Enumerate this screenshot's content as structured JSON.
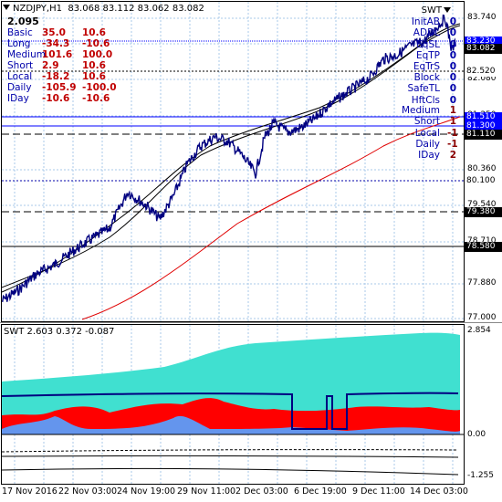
{
  "symbol_title": "NZDJPY,H1",
  "ohlc": "83.068 83.112 83.062 83.082",
  "main_value": "2.095",
  "stats": [
    {
      "label": "Basic",
      "v1": "35.0",
      "v2": "10.6"
    },
    {
      "label": "Long",
      "v1": "-34.3",
      "v2": "-10.6"
    },
    {
      "label": "Medium",
      "v1": "101.6",
      "v2": "100.0"
    },
    {
      "label": "Short",
      "v1": "2.9",
      "v2": "10.6"
    },
    {
      "label": "Local",
      "v1": "-18.2",
      "v2": "10.6"
    },
    {
      "label": "Daily",
      "v1": "-105.9",
      "v2": "-100.0"
    },
    {
      "label": "IDay",
      "v1": "-10.6",
      "v2": "-10.6"
    }
  ],
  "swt_label": "SWT",
  "right_group1": [
    {
      "label": "InitAB",
      "value": "0"
    },
    {
      "label": "ADDL",
      "value": "0"
    },
    {
      "label": "EqSL",
      "value": "0"
    },
    {
      "label": "EqTP",
      "value": "0"
    },
    {
      "label": "EqTrS",
      "value": "0"
    }
  ],
  "right_group2": [
    {
      "label": "Block",
      "value": "0"
    },
    {
      "label": "SafeTL",
      "value": "0"
    },
    {
      "label": "HftCls",
      "value": "0"
    }
  ],
  "right_group3": [
    {
      "label": "Medium",
      "value": "1"
    },
    {
      "label": "Short",
      "value": "1"
    },
    {
      "label": "Local",
      "value": "-1"
    },
    {
      "label": "Daily",
      "value": "-1"
    },
    {
      "label": "IDay",
      "value": "2"
    }
  ],
  "price_axis": [
    "83.740",
    "82.910",
    "82.080",
    "81.250",
    "80.360",
    "79.540",
    "78.710",
    "77.880",
    "77.000"
  ],
  "price_tags": [
    {
      "text": "83.230",
      "bg": "#0000ff",
      "fg": "#ffffff"
    },
    {
      "text": "83.082",
      "bg": "#000000",
      "fg": "#ffffff"
    },
    {
      "text": "82.520",
      "bg": "#ffffff",
      "fg": "#000000"
    },
    {
      "text": "81.510",
      "bg": "#0000ff",
      "fg": "#ffffff"
    },
    {
      "text": "81.300",
      "bg": "#0000ff",
      "fg": "#ffffff"
    },
    {
      "text": "81.110",
      "bg": "#000000",
      "fg": "#ffffff"
    },
    {
      "text": "80.100",
      "bg": "#ffffff",
      "fg": "#000000"
    },
    {
      "text": "79.380",
      "bg": "#000000",
      "fg": "#ffffff"
    },
    {
      "text": "78.580",
      "bg": "#000000",
      "fg": "#ffffff"
    }
  ],
  "indicator_title": "SWT 2.603 0.372 -0.087",
  "indicator_axis": [
    "2.854",
    "0.00",
    "-1.255"
  ],
  "time_axis": [
    "17 Nov 2016",
    "22 Nov 03:00",
    "24 Nov 19:00",
    "29 Nov 11:00",
    "2 Dec 03:00",
    "6 Dec 19:00",
    "9 Dec 11:00",
    "14 Dec 03:00"
  ],
  "colors": {
    "price": "#000080",
    "ma_red": "#e00000",
    "ma_black": "#000000",
    "teal": "#40e0d0",
    "red_fill": "#ff0000",
    "blue_fill": "#6495ed",
    "grid": "#a8c8e8"
  }
}
